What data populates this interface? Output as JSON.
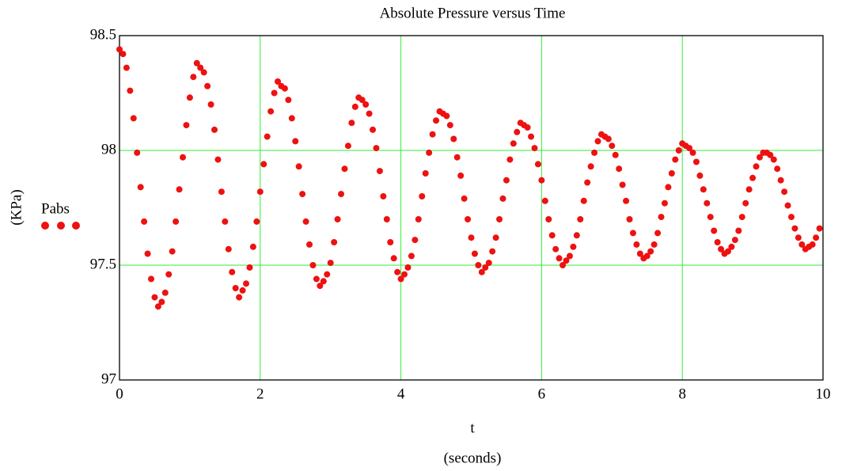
{
  "chart_data": {
    "type": "scatter",
    "title": "Absolute Pressure versus Time",
    "xlabel": "t",
    "xlabel_units": "(seconds)",
    "ylabel": "(KPa)",
    "xlim": [
      0,
      10
    ],
    "xticks": [
      0,
      2,
      4,
      6,
      8,
      10
    ],
    "ylim": [
      97,
      98.5
    ],
    "yticks": [
      98.5,
      98,
      97.5,
      97
    ],
    "grid": true,
    "grid_color": "#33ee33",
    "legend": "left",
    "x": [
      0,
      0.05,
      0.1,
      0.15,
      0.2,
      0.25,
      0.3,
      0.35,
      0.4,
      0.45,
      0.5,
      0.55,
      0.6,
      0.65,
      0.7,
      0.75,
      0.8,
      0.85,
      0.9,
      0.95,
      1,
      1.05,
      1.1,
      1.15,
      1.2,
      1.25,
      1.3,
      1.35,
      1.4,
      1.45,
      1.5,
      1.55,
      1.6,
      1.65,
      1.7,
      1.75,
      1.8,
      1.85,
      1.9,
      1.95,
      2,
      2.05,
      2.1,
      2.15,
      2.2,
      2.25,
      2.3,
      2.35,
      2.4,
      2.45,
      2.5,
      2.55,
      2.6,
      2.65,
      2.7,
      2.75,
      2.8,
      2.85,
      2.9,
      2.95,
      3,
      3.05,
      3.1,
      3.15,
      3.2,
      3.25,
      3.3,
      3.35,
      3.4,
      3.45,
      3.5,
      3.55,
      3.6,
      3.65,
      3.7,
      3.75,
      3.8,
      3.85,
      3.9,
      3.95,
      4,
      4.05,
      4.1,
      4.15,
      4.2,
      4.25,
      4.3,
      4.35,
      4.4,
      4.45,
      4.5,
      4.55,
      4.6,
      4.65,
      4.7,
      4.75,
      4.8,
      4.85,
      4.9,
      4.95,
      5,
      5.05,
      5.1,
      5.15,
      5.2,
      5.25,
      5.3,
      5.35,
      5.4,
      5.45,
      5.5,
      5.55,
      5.6,
      5.65,
      5.7,
      5.75,
      5.8,
      5.85,
      5.9,
      5.95,
      6,
      6.05,
      6.1,
      6.15,
      6.2,
      6.25,
      6.3,
      6.35,
      6.4,
      6.45,
      6.5,
      6.55,
      6.6,
      6.65,
      6.7,
      6.75,
      6.8,
      6.85,
      6.9,
      6.95,
      7,
      7.05,
      7.1,
      7.15,
      7.2,
      7.25,
      7.3,
      7.35,
      7.4,
      7.45,
      7.5,
      7.55,
      7.6,
      7.65,
      7.7,
      7.75,
      7.8,
      7.85,
      7.9,
      7.95,
      8,
      8.05,
      8.1,
      8.15,
      8.2,
      8.25,
      8.3,
      8.35,
      8.4,
      8.45,
      8.5,
      8.55,
      8.6,
      8.65,
      8.7,
      8.75,
      8.8,
      8.85,
      8.9,
      8.95,
      9,
      9.05,
      9.1,
      9.15,
      9.2,
      9.25,
      9.3,
      9.35,
      9.4,
      9.45,
      9.5,
      9.55,
      9.6,
      9.65,
      9.7,
      9.75,
      9.8,
      9.85,
      9.9,
      9.95
    ],
    "series": [
      {
        "name": "Pabs",
        "color": "#ee1111",
        "values": [
          98.44,
          98.42,
          98.36,
          98.26,
          98.14,
          97.99,
          97.84,
          97.69,
          97.55,
          97.44,
          97.36,
          97.32,
          97.34,
          97.38,
          97.46,
          97.56,
          97.69,
          97.83,
          97.97,
          98.11,
          98.23,
          98.32,
          98.38,
          98.36,
          98.34,
          98.28,
          98.2,
          98.09,
          97.96,
          97.82,
          97.69,
          97.57,
          97.47,
          97.4,
          97.36,
          97.39,
          97.42,
          97.49,
          97.58,
          97.69,
          97.82,
          97.94,
          98.06,
          98.17,
          98.25,
          98.3,
          98.28,
          98.27,
          98.22,
          98.14,
          98.04,
          97.93,
          97.81,
          97.69,
          97.59,
          97.5,
          97.44,
          97.41,
          97.43,
          97.46,
          97.51,
          97.6,
          97.7,
          97.81,
          97.92,
          98.02,
          98.12,
          98.19,
          98.23,
          98.22,
          98.2,
          98.16,
          98.09,
          98.01,
          97.91,
          97.8,
          97.7,
          97.6,
          97.53,
          97.47,
          97.44,
          97.46,
          97.49,
          97.54,
          97.61,
          97.7,
          97.8,
          97.9,
          97.99,
          98.07,
          98.13,
          98.17,
          98.16,
          98.15,
          98.11,
          98.05,
          97.97,
          97.89,
          97.79,
          97.7,
          97.62,
          97.55,
          97.5,
          97.47,
          97.49,
          97.51,
          97.56,
          97.62,
          97.7,
          97.79,
          97.87,
          97.96,
          98.03,
          98.08,
          98.12,
          98.11,
          98.1,
          98.06,
          98.01,
          97.94,
          97.87,
          97.78,
          97.7,
          97.63,
          97.57,
          97.53,
          97.5,
          97.52,
          97.54,
          97.58,
          97.63,
          97.7,
          97.78,
          97.86,
          97.93,
          97.99,
          98.04,
          98.07,
          98.06,
          98.05,
          98.02,
          97.98,
          97.92,
          97.85,
          97.78,
          97.7,
          97.64,
          97.59,
          97.55,
          97.53,
          97.54,
          97.56,
          97.59,
          97.64,
          97.71,
          97.77,
          97.84,
          97.9,
          97.96,
          98,
          98.03,
          98.02,
          98.01,
          97.99,
          97.95,
          97.89,
          97.83,
          97.77,
          97.71,
          97.65,
          97.6,
          97.57,
          97.55,
          97.56,
          97.58,
          97.61,
          97.65,
          97.71,
          97.77,
          97.83,
          97.88,
          97.93,
          97.97,
          97.99,
          97.99,
          97.98,
          97.96,
          97.92,
          97.87,
          97.82,
          97.76,
          97.71,
          97.66,
          97.62,
          97.59,
          97.57,
          97.58,
          97.59,
          97.62,
          97.66
        ]
      }
    ]
  }
}
